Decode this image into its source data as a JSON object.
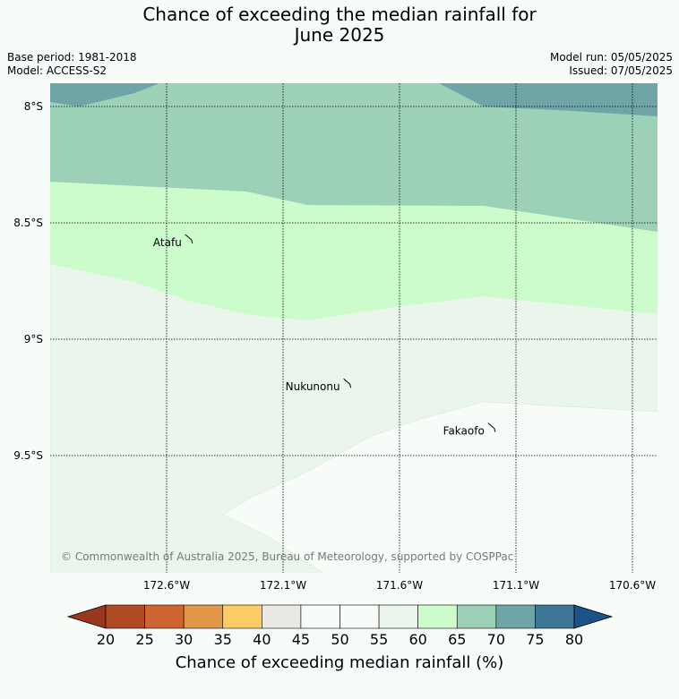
{
  "title": {
    "line1": "Chance of exceeding the median rainfall for",
    "line2": "June 2025"
  },
  "info": {
    "base_period": "Base period: 1981-2018",
    "model": "Model: ACCESS-S2",
    "model_run": "Model run: 05/05/2025",
    "issued": "Issued: 07/05/2025"
  },
  "map": {
    "lat_labels": [
      "8°S",
      "8.5°S",
      "9°S",
      "9.5°S"
    ],
    "lon_labels": [
      "172.6°W",
      "172.1°W",
      "171.6°W",
      "171.1°W",
      "170.6°W"
    ],
    "places": [
      {
        "name": "Atafu",
        "lon": -172.52,
        "lat": -8.55
      },
      {
        "name": "Nukunonu",
        "lon": -171.84,
        "lat": -9.17
      },
      {
        "name": "Fakaofo",
        "lon": -171.22,
        "lat": -9.36
      }
    ],
    "copyright": "© Commonwealth of Australia 2025, Bureau of Meteorology, supported by COSPPac"
  },
  "legend": {
    "title": "Chance of exceeding median rainfall (%)",
    "ticks": [
      "20",
      "25",
      "30",
      "35",
      "40",
      "45",
      "50",
      "55",
      "60",
      "65",
      "70",
      "75",
      "80"
    ],
    "colors": [
      "#993721",
      "#b04a22",
      "#cd6432",
      "#e19648",
      "#fecc67",
      "#eae8e3",
      "#f7fcf8",
      "#f7fcf8",
      "#eaf5eb",
      "#ccfccb",
      "#9cd1b8",
      "#6fa5a7",
      "#3e7795",
      "#1b5287"
    ]
  },
  "shading": {
    "class_55_60": "#eaf5eb",
    "class_60_65": "#ccfccb",
    "class_65_70": "#9cd1b8",
    "class_70_75": "#6fa5a7",
    "class_below_55": "#f7fcf8"
  }
}
